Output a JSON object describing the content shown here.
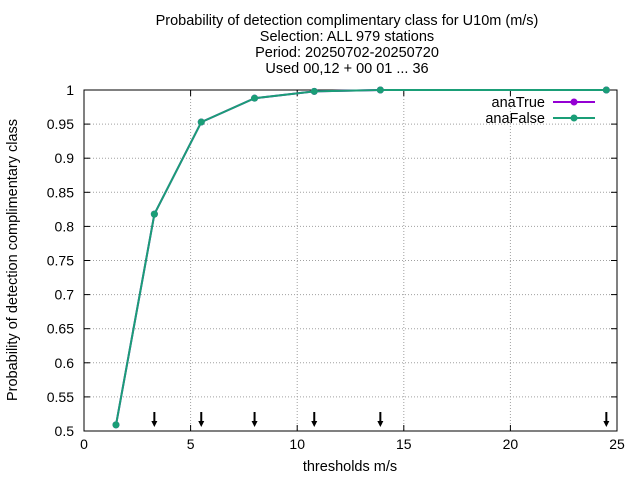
{
  "title_lines": [
    "Probability of detection complimentary class  for U10m (m/s)",
    "Selection: ALL    979 stations",
    "Period: 20250702-20250720",
    "Used 00,12 + 00 01 ... 36"
  ],
  "chart_data": {
    "type": "line",
    "title": "Probability of detection complimentary class  for U10m (m/s)",
    "xlabel": "thresholds m/s",
    "ylabel": "Probability of detection complimentary class",
    "xlim": [
      0,
      25
    ],
    "ylim": [
      0.5,
      1
    ],
    "xticks": [
      0,
      5,
      10,
      15,
      20,
      25
    ],
    "yticks": [
      0.5,
      0.55,
      0.6,
      0.65,
      0.7,
      0.75,
      0.8,
      0.85,
      0.9,
      0.95,
      1
    ],
    "x_tick_labels": [
      "0",
      "5",
      "10",
      "15",
      "20",
      "25"
    ],
    "y_tick_labels": [
      "0.5",
      "0.55",
      "0.6",
      "0.65",
      "0.7",
      "0.75",
      "0.8",
      "0.85",
      "0.9",
      "0.95",
      "1"
    ],
    "grid": true,
    "legend_position": "top-right",
    "threshold_markers": [
      3.3,
      5.5,
      8.0,
      10.8,
      13.9,
      24.5
    ],
    "series": [
      {
        "name": "anaTrue",
        "color": "#9400d3",
        "x": [
          1.5,
          3.3,
          5.5,
          8.0,
          10.8,
          13.9,
          24.5
        ],
        "y": [
          0.509,
          0.818,
          0.953,
          0.988,
          0.998,
          1.0,
          1.0
        ]
      },
      {
        "name": "anaFalse",
        "color": "#1a9e77",
        "x": [
          1.5,
          3.3,
          5.5,
          8.0,
          10.8,
          13.9,
          24.5
        ],
        "y": [
          0.509,
          0.818,
          0.953,
          0.988,
          0.998,
          1.0,
          1.0
        ]
      }
    ]
  }
}
